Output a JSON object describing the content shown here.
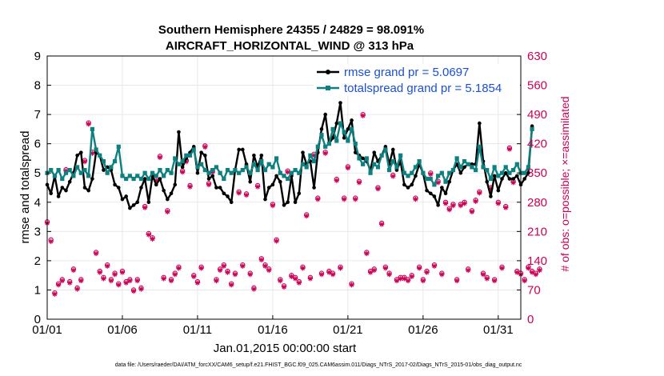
{
  "chart_data": {
    "type": "line",
    "title_line1": "Southern Hemisphere 24355 / 24829 = 98.091%",
    "title_line2": "AIRCRAFT_HORIZONTAL_WIND @ 313 hPa",
    "xlabel": "Jan.01,2015 00:00:00 start",
    "ylabel": "rmse and totalspread",
    "ylabel_right": "# of obs: o=possible; ×=assimilated",
    "xlim": [
      0,
      31.5
    ],
    "ylim": [
      0,
      9
    ],
    "ylim_right": [
      0,
      630
    ],
    "x_ticks": [
      0,
      5,
      10,
      15,
      20,
      25,
      30
    ],
    "x_tick_labels": [
      "01/01",
      "01/06",
      "01/11",
      "01/16",
      "01/21",
      "01/26",
      "01/31"
    ],
    "y_ticks": [
      0,
      1,
      2,
      3,
      4,
      5,
      6,
      7,
      8,
      9
    ],
    "y_tick_labels": [
      "0",
      "1",
      "2",
      "3",
      "4",
      "5",
      "6",
      "7",
      "8",
      "9"
    ],
    "y_right_ticks": [
      0,
      70,
      140,
      210,
      280,
      350,
      420,
      490,
      560,
      630
    ],
    "y_right_tick_labels": [
      "0",
      "70",
      "140",
      "210",
      "280",
      "350",
      "420",
      "490",
      "560",
      "630"
    ],
    "x_step_days": 0.25,
    "series": [
      {
        "name": "rmse",
        "legend": "rmse grand pr = 5.0697",
        "color": "#000000",
        "values": [
          4.6,
          4.3,
          4.9,
          4.2,
          4.5,
          4.4,
          4.7,
          5.0,
          5.6,
          5.7,
          4.5,
          4.4,
          4.8,
          5.7,
          5.6,
          5.1,
          5.2,
          5.1,
          4.6,
          4.5,
          4.1,
          4.2,
          3.8,
          3.9,
          4.0,
          4.5,
          4.8,
          4.0,
          4.9,
          4.6,
          4.8,
          4.4,
          4.1,
          4.3,
          4.6,
          6.4,
          5.2,
          5.5,
          5.7,
          5.9,
          5.0,
          5.7,
          5.6,
          4.8,
          4.9,
          4.5,
          4.5,
          4.3,
          4.2,
          4.0,
          5.1,
          5.8,
          5.8,
          5.3,
          4.7,
          5.6,
          5.2,
          5.6,
          4.1,
          4.5,
          4.6,
          4.9,
          4.7,
          3.9,
          4.0,
          4.9,
          4.0,
          4.3,
          5.7,
          5.3,
          5.4,
          4.5,
          5.7,
          6.5,
          7.0,
          6.0,
          6.2,
          6.7,
          7.4,
          6.2,
          6.5,
          6.8,
          5.7,
          5.6,
          5.5,
          5.4,
          5.1,
          5.7,
          5.4,
          5.6,
          5.9,
          5.3,
          5.8,
          5.1,
          5.4,
          4.6,
          4.5,
          4.6,
          4.9,
          5.3,
          5.0,
          4.4,
          4.3,
          4.2,
          3.9,
          4.5,
          4.3,
          4.7,
          5.1,
          5.3,
          5.0,
          5.2,
          5.3,
          5.3,
          5.3,
          6.7,
          5.4,
          4.7,
          4.2,
          4.9,
          4.4,
          4.8,
          5.0,
          4.8,
          4.8,
          4.9,
          4.6,
          4.8,
          5.0,
          6.6
        ]
      },
      {
        "name": "totalspread",
        "legend": "totalspread grand pr = 5.1854",
        "color": "#0f8080",
        "values": [
          5.0,
          5.1,
          4.9,
          5.1,
          4.8,
          5.0,
          5.1,
          4.9,
          5.2,
          5.0,
          5.1,
          4.9,
          6.5,
          5.8,
          5.6,
          5.4,
          5.0,
          5.2,
          5.4,
          5.9,
          4.9,
          4.8,
          4.9,
          4.8,
          4.9,
          4.8,
          5.0,
          4.8,
          5.0,
          4.9,
          5.1,
          4.9,
          5.1,
          5.0,
          5.5,
          5.3,
          5.4,
          5.6,
          5.6,
          5.8,
          5.2,
          5.3,
          5.1,
          5.0,
          5.1,
          5.2,
          5.0,
          4.8,
          5.1,
          5.0,
          5.1,
          5.0,
          5.1,
          5.2,
          5.0,
          5.3,
          5.1,
          5.4,
          5.1,
          5.3,
          5.2,
          5.5,
          5.0,
          4.9,
          4.8,
          5.0,
          5.1,
          5.0,
          5.3,
          5.2,
          5.6,
          5.4,
          5.9,
          6.3,
          5.9,
          6.0,
          6.5,
          6.1,
          6.7,
          6.4,
          6.1,
          6.5,
          6.0,
          5.5,
          5.3,
          5.5,
          5.0,
          5.3,
          5.2,
          5.6,
          5.8,
          5.1,
          5.4,
          5.2,
          5.6,
          5.0,
          4.9,
          5.0,
          5.2,
          5.4,
          5.0,
          4.8,
          4.8,
          4.6,
          4.9,
          5.0,
          4.7,
          5.0,
          5.1,
          5.5,
          5.2,
          5.4,
          5.3,
          5.2,
          5.1,
          5.9,
          5.2,
          5.1,
          4.8,
          5.2,
          4.9,
          5.0,
          5.2,
          5.0,
          5.1,
          5.3,
          5.0,
          5.0,
          5.2,
          6.5
        ]
      }
    ],
    "obs_possible": [
      233,
      190,
      63,
      85,
      95,
      358,
      90,
      120,
      75,
      95,
      380,
      470,
      400,
      160,
      115,
      100,
      130,
      95,
      110,
      85,
      115,
      90,
      95,
      70,
      95,
      75,
      270,
      205,
      195,
      335,
      390,
      100,
      260,
      95,
      110,
      125,
      355,
      380,
      320,
      105,
      90,
      125,
      415,
      325,
      355,
      95,
      120,
      130,
      115,
      85,
      110,
      305,
      130,
      300,
      110,
      75,
      320,
      145,
      130,
      120,
      275,
      190,
      95,
      80,
      355,
      105,
      100,
      90,
      125,
      250,
      100,
      395,
      290,
      110,
      400,
      115,
      110,
      335,
      125,
      290,
      365,
      85,
      290,
      330,
      490,
      160,
      115,
      120,
      315,
      230,
      125,
      110,
      345,
      95,
      100,
      100,
      95,
      105,
      290,
      125,
      95,
      115,
      350,
      130,
      330,
      110,
      280,
      265,
      275,
      95,
      275,
      280,
      120,
      260,
      285,
      305,
      110,
      100,
      315,
      95,
      280,
      125,
      270,
      410,
      330,
      115,
      110,
      95,
      125,
      115,
      110,
      120
    ],
    "obs_assimilated": [
      230,
      186,
      60,
      82,
      92,
      355,
      87,
      117,
      72,
      92,
      377,
      467,
      397,
      157,
      112,
      97,
      127,
      92,
      107,
      82,
      112,
      87,
      92,
      67,
      92,
      72,
      267,
      202,
      192,
      332,
      387,
      97,
      257,
      92,
      107,
      122,
      352,
      377,
      317,
      102,
      87,
      122,
      412,
      322,
      352,
      92,
      117,
      127,
      112,
      82,
      107,
      302,
      127,
      297,
      107,
      72,
      317,
      142,
      127,
      117,
      272,
      187,
      92,
      77,
      352,
      102,
      97,
      87,
      122,
      247,
      97,
      392,
      287,
      107,
      397,
      112,
      107,
      332,
      122,
      287,
      362,
      82,
      287,
      327,
      487,
      157,
      112,
      117,
      312,
      227,
      122,
      107,
      342,
      92,
      97,
      97,
      92,
      102,
      287,
      122,
      92,
      112,
      347,
      127,
      327,
      107,
      277,
      262,
      272,
      92,
      272,
      277,
      117,
      257,
      282,
      302,
      107,
      97,
      312,
      92,
      277,
      122,
      267,
      407,
      327,
      112,
      107,
      92,
      122,
      112,
      107,
      117
    ]
  },
  "footer": "data file: /Users/raeder/DAI/ATM_forcXX/CAM6_setup/f.e21.FHIST_BGC.f09_025.CAM6assim.011/Diags_NTrS_2017-02/Diags_NTrS_2015-01/obs_diag_output.nc",
  "colors": {
    "rmse": "#000000",
    "spread": "#0f8080",
    "obs": "#cc0055"
  }
}
